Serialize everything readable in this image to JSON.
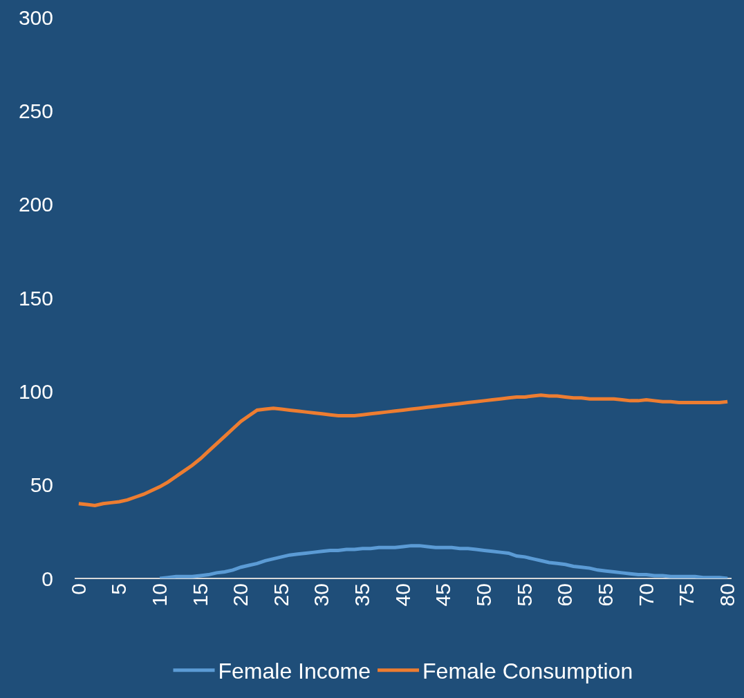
{
  "chart_data": {
    "type": "line",
    "xlim": [
      -0.5,
      80.5
    ],
    "xticks": [
      0,
      5,
      10,
      15,
      20,
      25,
      30,
      35,
      40,
      45,
      50,
      55,
      60,
      65,
      70,
      75,
      80
    ],
    "ylim": [
      0,
      300
    ],
    "yticks": [
      0,
      50,
      100,
      150,
      200,
      250,
      300
    ],
    "grid": false,
    "legend": "bottom",
    "marker": "none",
    "line_style": "solid",
    "series": [
      {
        "name": "Female Income",
        "color": "#5b9bd5",
        "x": [
          10,
          11,
          12,
          13,
          14,
          15,
          16,
          17,
          18,
          19,
          20,
          21,
          22,
          23,
          24,
          25,
          26,
          27,
          28,
          29,
          30,
          31,
          32,
          33,
          34,
          35,
          36,
          37,
          38,
          39,
          40,
          41,
          42,
          43,
          44,
          45,
          46,
          47,
          48,
          49,
          50,
          51,
          52,
          53,
          54,
          55,
          56,
          57,
          58,
          59,
          60,
          61,
          62,
          63,
          64,
          65,
          66,
          67,
          68,
          69,
          70,
          71,
          72,
          73,
          74,
          75,
          76,
          77,
          78,
          79,
          80
        ],
        "values": [
          0,
          0.5,
          1,
          1,
          1,
          1.5,
          2,
          3,
          3.5,
          4.5,
          6,
          7,
          8,
          9.5,
          10.5,
          11.5,
          12.5,
          13,
          13.5,
          14,
          14.5,
          15,
          15,
          15.5,
          15.5,
          16,
          16,
          16.5,
          16.5,
          16.5,
          17,
          17.5,
          17.5,
          17,
          16.5,
          16.5,
          16.5,
          16,
          16,
          15.5,
          15,
          14.5,
          14,
          13.5,
          12,
          11.5,
          10.5,
          9.5,
          8.5,
          8,
          7.5,
          6.5,
          6,
          5.5,
          4.5,
          4,
          3.5,
          3,
          2.5,
          2,
          2,
          1.5,
          1.5,
          1,
          1,
          1,
          1,
          0.5,
          0.5,
          0.5,
          0
        ]
      },
      {
        "name": "Female Consumption",
        "color": "#ed7d31",
        "x": [
          0,
          1,
          2,
          3,
          4,
          5,
          6,
          7,
          8,
          9,
          10,
          11,
          12,
          13,
          14,
          15,
          16,
          17,
          18,
          19,
          20,
          21,
          22,
          23,
          24,
          25,
          26,
          27,
          28,
          29,
          30,
          31,
          32,
          33,
          34,
          35,
          36,
          37,
          38,
          39,
          40,
          41,
          42,
          43,
          44,
          45,
          46,
          47,
          48,
          49,
          50,
          51,
          52,
          53,
          54,
          55,
          56,
          57,
          58,
          59,
          60,
          61,
          62,
          63,
          64,
          65,
          66,
          67,
          68,
          69,
          70,
          71,
          72,
          73,
          74,
          75,
          76,
          77,
          78,
          79,
          80
        ],
        "values": [
          40,
          39.5,
          39,
          40,
          40.5,
          41,
          42,
          43.5,
          45,
          47,
          49,
          51.5,
          54.5,
          57.5,
          60.5,
          64,
          68,
          72,
          76,
          80,
          84,
          87,
          90,
          90.5,
          91,
          90.5,
          90,
          89.5,
          89,
          88.5,
          88,
          87.5,
          87,
          87,
          87,
          87.5,
          88,
          88.5,
          89,
          89.5,
          90,
          90.5,
          91,
          91.5,
          92,
          92.5,
          93,
          93.5,
          94,
          94.5,
          95,
          95.5,
          96,
          96.5,
          97,
          97,
          97.5,
          98,
          97.5,
          97.5,
          97,
          96.5,
          96.5,
          96,
          96,
          96,
          96,
          95.5,
          95,
          95,
          95.5,
          95,
          94.5,
          94.5,
          94,
          94,
          94,
          94,
          94,
          94,
          94.5
        ]
      }
    ]
  }
}
